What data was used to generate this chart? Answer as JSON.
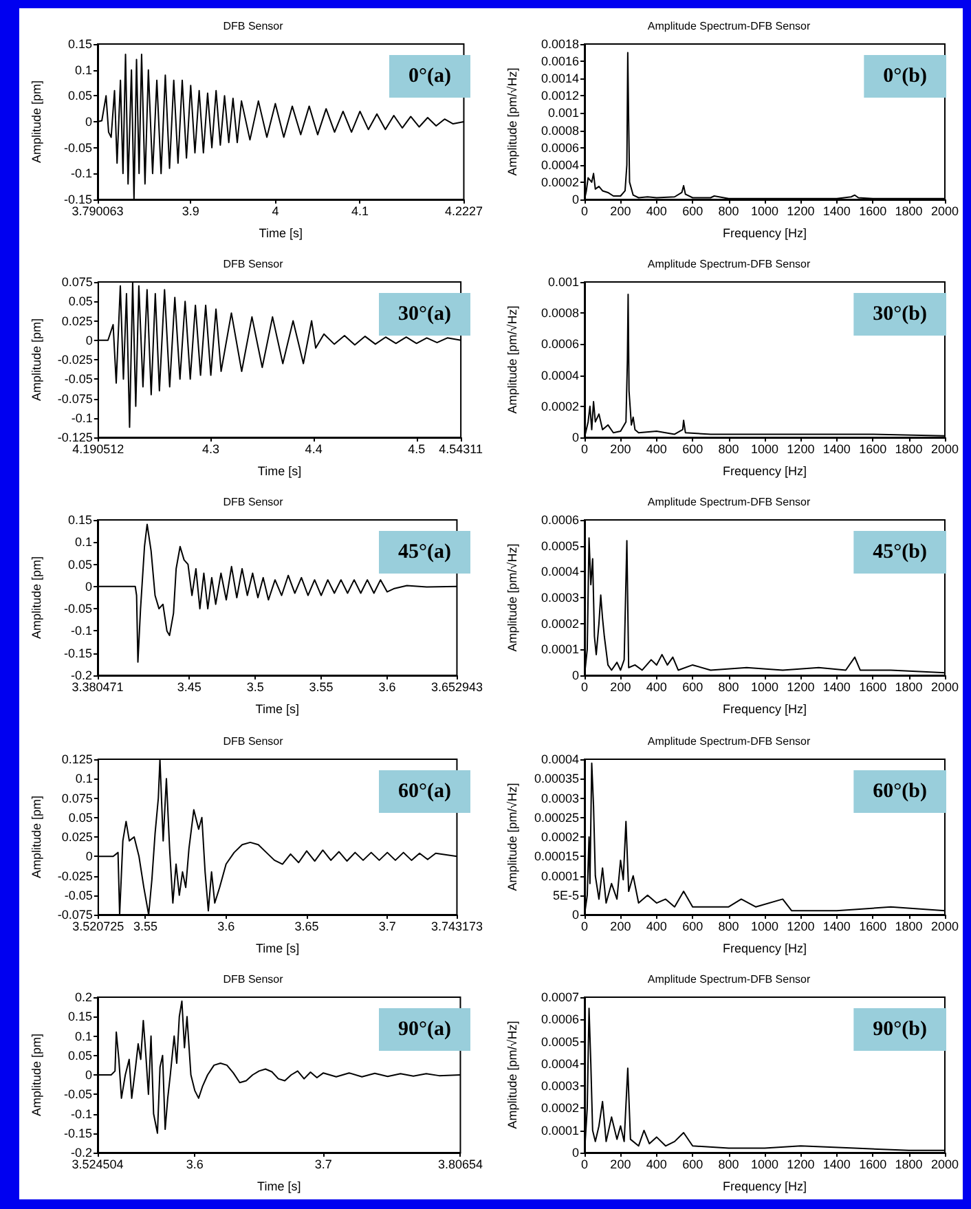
{
  "chart_data": [
    {
      "type": "line",
      "title": "DFB Sensor",
      "xlabel": "Time [s]",
      "ylabel": "Amplitude [pm]",
      "annotations": [
        "0°(a)"
      ],
      "marker": "none",
      "xlim": [
        3.790063,
        4.2227
      ],
      "xticks": [
        3.790063,
        3.9,
        4,
        4.1,
        4.2227
      ],
      "ylim": [
        -0.15,
        0.15
      ],
      "yticks": [
        -0.15,
        -0.1,
        -0.05,
        0,
        0.05,
        0.1,
        0.15
      ],
      "x": [
        3.790063,
        3.795,
        3.8,
        3.803,
        3.806,
        3.81,
        3.813,
        3.817,
        3.82,
        3.823,
        3.826,
        3.83,
        3.833,
        3.836,
        3.839,
        3.842,
        3.846,
        3.85,
        3.855,
        3.86,
        3.865,
        3.87,
        3.875,
        3.88,
        3.885,
        3.89,
        3.895,
        3.9,
        3.905,
        3.91,
        3.915,
        3.92,
        3.925,
        3.93,
        3.935,
        3.94,
        3.945,
        3.95,
        3.955,
        3.96,
        3.97,
        3.98,
        3.99,
        4,
        4.01,
        4.02,
        4.03,
        4.04,
        4.05,
        4.06,
        4.07,
        4.08,
        4.09,
        4.1,
        4.11,
        4.12,
        4.13,
        4.14,
        4.15,
        4.16,
        4.17,
        4.18,
        4.19,
        4.2,
        4.21,
        4.2227
      ],
      "series": [
        {
          "color": "#000000",
          "values": [
            0,
            0.002,
            0.05,
            -0.02,
            -0.03,
            0.06,
            -0.08,
            0.08,
            -0.1,
            0.13,
            -0.12,
            0.1,
            -0.15,
            0.12,
            -0.1,
            0.13,
            -0.12,
            0.1,
            -0.1,
            0.08,
            -0.1,
            0.09,
            -0.09,
            0.08,
            -0.08,
            0.08,
            -0.07,
            0.07,
            -0.06,
            0.06,
            -0.06,
            0.055,
            -0.05,
            0.06,
            -0.045,
            0.05,
            -0.04,
            0.045,
            -0.04,
            0.04,
            -0.035,
            0.04,
            -0.03,
            0.035,
            -0.03,
            0.03,
            -0.025,
            0.03,
            -0.025,
            0.025,
            -0.02,
            0.02,
            -0.02,
            0.02,
            -0.015,
            0.015,
            -0.015,
            0.012,
            -0.012,
            0.01,
            -0.01,
            0.008,
            -0.008,
            0.005,
            -0.004,
            0
          ]
        }
      ]
    },
    {
      "type": "line",
      "title": "Amplitude Spectrum-DFB Sensor",
      "xlabel": "Frequency [Hz]",
      "ylabel": "Amplitude [pm/√Hz]",
      "annotations": [
        "0°(b)"
      ],
      "marker": "none",
      "xlim": [
        0,
        2000
      ],
      "xticks": [
        0,
        200,
        400,
        600,
        800,
        1000,
        1200,
        1400,
        1600,
        1800,
        2000
      ],
      "ylim": [
        0,
        0.0018
      ],
      "yticks": [
        0,
        0.0002,
        0.0004,
        0.0006,
        0.0008,
        0.001,
        0.0012,
        0.0014,
        0.0016,
        0.0018
      ],
      "x": [
        0,
        10,
        20,
        40,
        50,
        60,
        80,
        100,
        130,
        160,
        200,
        225,
        235,
        240,
        245,
        250,
        270,
        300,
        350,
        400,
        500,
        540,
        550,
        560,
        600,
        700,
        720,
        800,
        1000,
        1200,
        1400,
        1480,
        1500,
        1520,
        1600,
        2000
      ],
      "series": [
        {
          "color": "#000000",
          "values": [
            0,
            0.0001,
            0.00025,
            0.0002,
            0.0003,
            0.00012,
            0.00015,
            0.0001,
            8e-05,
            4e-05,
            4e-05,
            0.0001,
            0.0004,
            0.0017,
            0.0009,
            0.0002,
            5e-05,
            2e-05,
            3e-05,
            2e-05,
            3e-05,
            8e-05,
            0.00016,
            6e-05,
            2e-05,
            2e-05,
            4e-05,
            1e-05,
            1e-05,
            1e-05,
            1e-05,
            3e-05,
            5e-05,
            2e-05,
            1e-05,
            1e-05
          ]
        }
      ]
    },
    {
      "type": "line",
      "title": "DFB Sensor",
      "xlabel": "Time [s]",
      "ylabel": "Amplitude [pm]",
      "annotations": [
        "30°(a)"
      ],
      "marker": "none",
      "xlim": [
        4.190512,
        4.54311
      ],
      "xticks": [
        4.190512,
        4.3,
        4.4,
        4.5,
        4.54311
      ],
      "ylim": [
        -0.125,
        0.075
      ],
      "yticks": [
        -0.125,
        -0.1,
        -0.075,
        -0.05,
        -0.025,
        0,
        0.025,
        0.05,
        0.075
      ],
      "x": [
        4.190512,
        4.2,
        4.205,
        4.208,
        4.212,
        4.215,
        4.218,
        4.221,
        4.224,
        4.227,
        4.23,
        4.234,
        4.238,
        4.242,
        4.246,
        4.25,
        4.255,
        4.26,
        4.265,
        4.27,
        4.275,
        4.28,
        4.285,
        4.29,
        4.295,
        4.3,
        4.305,
        4.31,
        4.32,
        4.33,
        4.34,
        4.35,
        4.36,
        4.37,
        4.38,
        4.39,
        4.398,
        4.402,
        4.41,
        4.42,
        4.43,
        4.44,
        4.45,
        4.46,
        4.47,
        4.48,
        4.49,
        4.5,
        4.51,
        4.52,
        4.53,
        4.54311
      ],
      "series": [
        {
          "color": "#000000",
          "values": [
            0,
            0,
            0.02,
            -0.055,
            0.07,
            -0.05,
            0.06,
            -0.112,
            0.075,
            -0.085,
            0.07,
            -0.06,
            0.065,
            -0.07,
            0.06,
            -0.065,
            0.065,
            -0.06,
            0.055,
            -0.05,
            0.05,
            -0.05,
            0.045,
            -0.045,
            0.045,
            -0.045,
            0.04,
            -0.04,
            0.035,
            -0.04,
            0.03,
            -0.035,
            0.03,
            -0.03,
            0.025,
            -0.03,
            0.025,
            -0.01,
            0.008,
            -0.005,
            0.006,
            -0.006,
            0.005,
            -0.005,
            0.004,
            -0.004,
            0.004,
            -0.004,
            0.003,
            -0.003,
            0.003,
            0
          ]
        }
      ]
    },
    {
      "type": "line",
      "title": "Amplitude Spectrum-DFB Sensor",
      "xlabel": "Frequency [Hz]",
      "ylabel": "Amplitude [pm/√Hz]",
      "annotations": [
        "30°(b)"
      ],
      "marker": "none",
      "xlim": [
        0,
        2000
      ],
      "xticks": [
        0,
        200,
        400,
        600,
        800,
        1000,
        1200,
        1400,
        1600,
        1800,
        2000
      ],
      "ylim": [
        0,
        0.001
      ],
      "yticks": [
        0,
        0.0002,
        0.0004,
        0.0006,
        0.0008,
        0.001
      ],
      "x": [
        0,
        20,
        30,
        40,
        50,
        60,
        80,
        100,
        130,
        160,
        200,
        230,
        238,
        242,
        247,
        260,
        270,
        280,
        300,
        400,
        500,
        545,
        550,
        560,
        700,
        1000,
        1300,
        1600,
        2000
      ],
      "series": [
        {
          "color": "#000000",
          "values": [
            0,
            0.0001,
            0.0002,
            5e-05,
            0.00023,
            0.0001,
            0.00015,
            5e-05,
            8e-05,
            3e-05,
            4e-05,
            0.0001,
            0.0005,
            0.00092,
            0.0003,
            8e-05,
            0.00013,
            5e-05,
            3e-05,
            4e-05,
            2e-05,
            5e-05,
            0.00011,
            3e-05,
            2e-05,
            2e-05,
            2e-05,
            2e-05,
            1e-05
          ]
        }
      ]
    },
    {
      "type": "line",
      "title": "DFB Sensor",
      "xlabel": "Time [s]",
      "ylabel": "Amplitude [pm]",
      "annotations": [
        "45°(a)"
      ],
      "marker": "none",
      "xlim": [
        3.380471,
        3.652943
      ],
      "xticks": [
        3.380471,
        3.45,
        3.5,
        3.55,
        3.6,
        3.652943
      ],
      "ylim": [
        -0.2,
        0.15
      ],
      "yticks": [
        -0.2,
        -0.15,
        -0.1,
        -0.05,
        0,
        0.05,
        0.1,
        0.15
      ],
      "x": [
        3.380471,
        3.4,
        3.409,
        3.41,
        3.411,
        3.413,
        3.416,
        3.418,
        3.421,
        3.424,
        3.427,
        3.43,
        3.433,
        3.435,
        3.438,
        3.44,
        3.443,
        3.446,
        3.449,
        3.452,
        3.455,
        3.458,
        3.461,
        3.464,
        3.467,
        3.47,
        3.474,
        3.478,
        3.482,
        3.486,
        3.49,
        3.494,
        3.498,
        3.502,
        3.506,
        3.51,
        3.515,
        3.52,
        3.525,
        3.53,
        3.535,
        3.54,
        3.545,
        3.55,
        3.555,
        3.56,
        3.565,
        3.57,
        3.575,
        3.58,
        3.585,
        3.59,
        3.595,
        3.6,
        3.605,
        3.615,
        3.63,
        3.652943
      ],
      "series": [
        {
          "color": "#000000",
          "values": [
            0,
            0,
            0,
            -0.02,
            -0.17,
            -0.05,
            0.09,
            0.14,
            0.08,
            -0.02,
            -0.05,
            -0.04,
            -0.1,
            -0.11,
            -0.06,
            0.04,
            0.09,
            0.06,
            0.05,
            -0.02,
            0.04,
            -0.05,
            0.03,
            -0.05,
            0.02,
            -0.04,
            0.03,
            -0.03,
            0.045,
            -0.025,
            0.04,
            -0.02,
            0.03,
            -0.025,
            0.02,
            -0.03,
            0.015,
            -0.02,
            0.025,
            -0.015,
            0.02,
            -0.02,
            0.015,
            -0.02,
            0.015,
            -0.015,
            0.015,
            -0.015,
            0.015,
            -0.015,
            0.015,
            -0.015,
            0.015,
            -0.012,
            -0.005,
            0.002,
            -0.001,
            0
          ]
        }
      ]
    },
    {
      "type": "line",
      "title": "Amplitude Spectrum-DFB Sensor",
      "xlabel": "Frequency [Hz]",
      "ylabel": "Amplitude [pm/√Hz]",
      "annotations": [
        "45°(b)"
      ],
      "marker": "none",
      "xlim": [
        0,
        2000
      ],
      "xticks": [
        0,
        200,
        400,
        600,
        800,
        1000,
        1200,
        1400,
        1600,
        1800,
        2000
      ],
      "ylim": [
        0,
        0.0006
      ],
      "yticks": [
        0,
        0.0001,
        0.0002,
        0.0003,
        0.0004,
        0.0005,
        0.0006
      ],
      "x": [
        0,
        15,
        25,
        35,
        45,
        55,
        65,
        80,
        90,
        100,
        110,
        130,
        150,
        180,
        200,
        220,
        235,
        245,
        280,
        320,
        370,
        400,
        430,
        460,
        490,
        520,
        600,
        700,
        900,
        1100,
        1300,
        1450,
        1500,
        1530,
        1700,
        2000
      ],
      "series": [
        {
          "color": "#000000",
          "values": [
            0,
            0.0001,
            0.00053,
            0.00035,
            0.00045,
            0.00015,
            8e-05,
            0.0002,
            0.00031,
            0.00022,
            0.00015,
            4e-05,
            2e-05,
            5e-05,
            2e-05,
            6e-05,
            0.00052,
            3e-05,
            4e-05,
            2e-05,
            6e-05,
            4e-05,
            8e-05,
            4e-05,
            7e-05,
            2e-05,
            4e-05,
            2e-05,
            3e-05,
            2e-05,
            3e-05,
            2e-05,
            7e-05,
            2e-05,
            2e-05,
            1e-05
          ]
        }
      ]
    },
    {
      "type": "line",
      "title": "DFB Sensor",
      "xlabel": "Time [s]",
      "ylabel": "Amplitude [pm]",
      "annotations": [
        "60°(a)"
      ],
      "marker": "none",
      "xlim": [
        3.520725,
        3.743173
      ],
      "xticks": [
        3.520725,
        3.55,
        3.6,
        3.65,
        3.7,
        3.743173
      ],
      "ylim": [
        -0.075,
        0.125
      ],
      "yticks": [
        -0.075,
        -0.05,
        -0.025,
        0,
        0.025,
        0.05,
        0.075,
        0.1,
        0.125
      ],
      "x": [
        3.520725,
        3.53,
        3.533,
        3.534,
        3.536,
        3.538,
        3.54,
        3.543,
        3.546,
        3.549,
        3.552,
        3.554,
        3.556,
        3.558,
        3.559,
        3.561,
        3.563,
        3.565,
        3.567,
        3.569,
        3.571,
        3.573,
        3.575,
        3.577,
        3.58,
        3.583,
        3.585,
        3.587,
        3.589,
        3.591,
        3.593,
        3.596,
        3.6,
        3.605,
        3.61,
        3.615,
        3.62,
        3.625,
        3.63,
        3.635,
        3.64,
        3.645,
        3.65,
        3.655,
        3.66,
        3.665,
        3.67,
        3.675,
        3.68,
        3.685,
        3.69,
        3.695,
        3.7,
        3.705,
        3.71,
        3.715,
        3.72,
        3.725,
        3.73,
        3.743173
      ],
      "series": [
        {
          "color": "#000000",
          "values": [
            0,
            0,
            0.005,
            -0.075,
            0.02,
            0.045,
            0.02,
            0.025,
            0,
            -0.04,
            -0.075,
            -0.03,
            0.03,
            0.075,
            0.125,
            0.02,
            0.1,
            0.01,
            -0.06,
            -0.01,
            -0.05,
            -0.02,
            -0.04,
            0.01,
            0.06,
            0.035,
            0.05,
            -0.02,
            -0.07,
            -0.02,
            -0.06,
            -0.04,
            -0.01,
            0.005,
            0.015,
            0.018,
            0.015,
            0.005,
            -0.005,
            -0.01,
            0.003,
            -0.008,
            0.007,
            -0.006,
            0.008,
            -0.005,
            0.006,
            -0.006,
            0.005,
            -0.005,
            0.005,
            -0.005,
            0.005,
            -0.005,
            0.005,
            -0.005,
            0.004,
            -0.004,
            0.004,
            0
          ]
        }
      ]
    },
    {
      "type": "line",
      "title": "Amplitude Spectrum-DFB Sensor",
      "xlabel": "Frequency [Hz]",
      "ylabel": "Amplitude [pm/√Hz]",
      "annotations": [
        "60°(b)"
      ],
      "marker": "none",
      "xlim": [
        0,
        2000
      ],
      "xticks": [
        0,
        200,
        400,
        600,
        800,
        1000,
        1200,
        1400,
        1600,
        1800,
        2000
      ],
      "ylim": [
        0,
        0.0004
      ],
      "yticks": [
        0,
        {
          "value": 5e-05,
          "label": "5E-5"
        },
        0.0001,
        0.00015,
        0.0002,
        0.00025,
        0.0003,
        0.00035,
        0.0004
      ],
      "x": [
        0,
        15,
        25,
        30,
        40,
        50,
        60,
        80,
        100,
        120,
        150,
        180,
        200,
        215,
        230,
        245,
        270,
        300,
        350,
        400,
        450,
        500,
        550,
        600,
        700,
        800,
        870,
        950,
        1100,
        1150,
        1400,
        1700,
        2000
      ],
      "series": [
        {
          "color": "#000000",
          "values": [
            0,
            5e-05,
            0.0002,
            8e-05,
            0.00039,
            0.00028,
            0.0001,
            4e-05,
            0.00012,
            3e-05,
            8e-05,
            4e-05,
            0.00014,
            9e-05,
            0.00024,
            6e-05,
            0.0001,
            3e-05,
            5e-05,
            3e-05,
            4e-05,
            2e-05,
            6e-05,
            2e-05,
            2e-05,
            2e-05,
            4e-05,
            2e-05,
            4e-05,
            1e-05,
            1e-05,
            2e-05,
            1e-05
          ]
        }
      ]
    },
    {
      "type": "line",
      "title": "DFB Sensor",
      "xlabel": "Time [s]",
      "ylabel": "Amplitude [pm]",
      "annotations": [
        "90°(a)"
      ],
      "marker": "none",
      "xlim": [
        3.524504,
        3.80654
      ],
      "xticks": [
        3.524504,
        3.6,
        3.7,
        3.80654
      ],
      "ylim": [
        -0.2,
        0.2
      ],
      "yticks": [
        -0.2,
        -0.15,
        -0.1,
        -0.05,
        0,
        0.05,
        0.1,
        0.15,
        0.2
      ],
      "x": [
        3.524504,
        3.535,
        3.538,
        3.539,
        3.541,
        3.543,
        3.546,
        3.549,
        3.551,
        3.554,
        3.556,
        3.558,
        3.56,
        3.562,
        3.564,
        3.566,
        3.568,
        3.571,
        3.573,
        3.575,
        3.577,
        3.579,
        3.581,
        3.584,
        3.586,
        3.588,
        3.59,
        3.592,
        3.594,
        3.597,
        3.6,
        3.603,
        3.606,
        3.61,
        3.615,
        3.62,
        3.625,
        3.63,
        3.635,
        3.64,
        3.645,
        3.65,
        3.655,
        3.66,
        3.665,
        3.67,
        3.675,
        3.68,
        3.685,
        3.69,
        3.695,
        3.7,
        3.71,
        3.72,
        3.73,
        3.74,
        3.75,
        3.76,
        3.77,
        3.78,
        3.79,
        3.80654
      ],
      "series": [
        {
          "color": "#000000",
          "values": [
            0,
            0,
            0.01,
            0.11,
            0.04,
            -0.06,
            0,
            0.04,
            -0.06,
            0.02,
            0.08,
            0.04,
            0.14,
            0.05,
            -0.05,
            0.1,
            -0.1,
            -0.15,
            0.02,
            0.05,
            -0.14,
            -0.06,
            0,
            0.1,
            0.03,
            0.15,
            0.19,
            0.07,
            0.15,
            0,
            -0.04,
            -0.06,
            -0.03,
            0,
            0.025,
            0.03,
            0.025,
            0.005,
            -0.02,
            -0.015,
            0,
            0.01,
            0.015,
            0.008,
            -0.01,
            -0.015,
            0,
            0.01,
            -0.01,
            0.007,
            -0.007,
            0.005,
            -0.005,
            0.005,
            -0.005,
            0.004,
            -0.004,
            0.003,
            -0.003,
            0.003,
            -0.002,
            0
          ]
        }
      ]
    },
    {
      "type": "line",
      "title": "Amplitude Spectrum-DFB Sensor",
      "xlabel": "Frequency [Hz]",
      "ylabel": "Amplitude [pm/√Hz]",
      "annotations": [
        "90°(b)"
      ],
      "marker": "none",
      "xlim": [
        0,
        2000
      ],
      "xticks": [
        0,
        200,
        400,
        600,
        800,
        1000,
        1200,
        1400,
        1600,
        1800,
        2000
      ],
      "ylim": [
        0,
        0.0007
      ],
      "yticks": [
        0,
        0.0001,
        0.0002,
        0.0003,
        0.0004,
        0.0005,
        0.0006,
        0.0007
      ],
      "x": [
        0,
        15,
        25,
        35,
        45,
        60,
        80,
        100,
        120,
        150,
        180,
        200,
        220,
        240,
        255,
        300,
        330,
        360,
        400,
        450,
        500,
        550,
        600,
        800,
        1000,
        1200,
        1500,
        1800,
        2000
      ],
      "series": [
        {
          "color": "#000000",
          "values": [
            0,
            0.0002,
            0.00065,
            0.0004,
            0.0001,
            5e-05,
            0.00012,
            0.00023,
            5e-05,
            0.00016,
            6e-05,
            0.00012,
            5e-05,
            0.00038,
            6e-05,
            3e-05,
            0.0001,
            4e-05,
            7e-05,
            3e-05,
            5e-05,
            9e-05,
            3e-05,
            2e-05,
            2e-05,
            3e-05,
            2e-05,
            1e-05,
            1e-05
          ]
        }
      ]
    }
  ]
}
